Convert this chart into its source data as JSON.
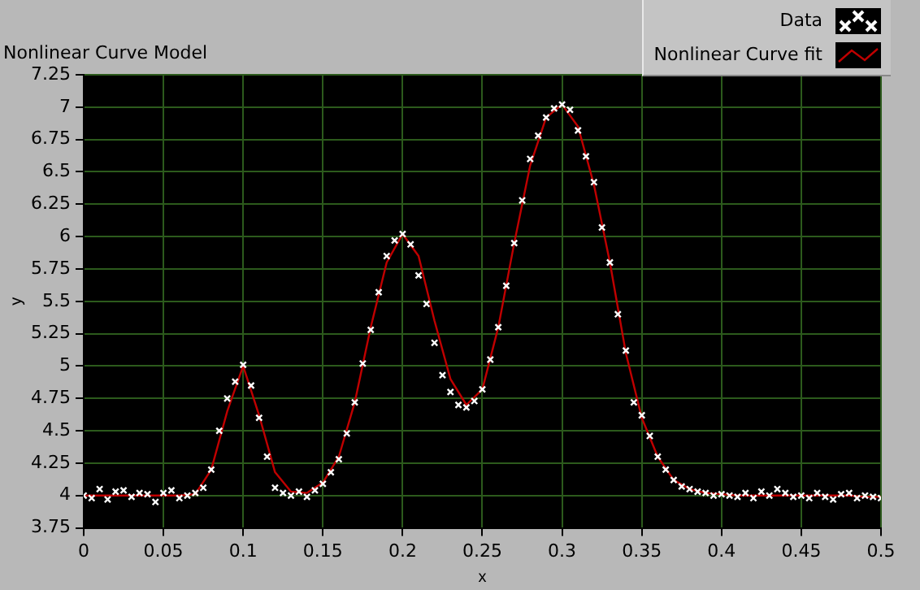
{
  "chart_data": {
    "type": "scatter",
    "title": "Nonlinear Curve Model",
    "xlabel": "x",
    "ylabel": "y",
    "xlim": [
      0,
      0.5
    ],
    "xticks": [
      0,
      0.05,
      0.1,
      0.15,
      0.2,
      0.25,
      0.3,
      0.35,
      0.4,
      0.45,
      0.5
    ],
    "ylim": [
      3.75,
      7.25
    ],
    "yticks": [
      3.75,
      4,
      4.25,
      4.5,
      4.75,
      5,
      5.25,
      5.5,
      5.75,
      6,
      6.25,
      6.5,
      6.75,
      7,
      7.25
    ],
    "grid": true,
    "legend": "top right",
    "marker": "cross",
    "series": [
      {
        "name": "Data",
        "color": "#ffffff",
        "x": [
          0,
          0.005,
          0.01,
          0.015,
          0.02,
          0.025,
          0.03,
          0.035,
          0.04,
          0.045,
          0.05,
          0.055,
          0.06,
          0.065,
          0.07,
          0.075,
          0.08,
          0.085,
          0.09,
          0.095,
          0.1,
          0.105,
          0.11,
          0.115,
          0.12,
          0.125,
          0.13,
          0.135,
          0.14,
          0.145,
          0.15,
          0.155,
          0.16,
          0.165,
          0.17,
          0.175,
          0.18,
          0.185,
          0.19,
          0.195,
          0.2,
          0.205,
          0.21,
          0.215,
          0.22,
          0.225,
          0.23,
          0.235,
          0.24,
          0.245,
          0.25,
          0.255,
          0.26,
          0.265,
          0.27,
          0.275,
          0.28,
          0.285,
          0.29,
          0.295,
          0.3,
          0.305,
          0.31,
          0.315,
          0.32,
          0.325,
          0.33,
          0.335,
          0.34,
          0.345,
          0.35,
          0.355,
          0.36,
          0.365,
          0.37,
          0.375,
          0.38,
          0.385,
          0.39,
          0.395,
          0.4,
          0.405,
          0.41,
          0.415,
          0.42,
          0.425,
          0.43,
          0.435,
          0.44,
          0.445,
          0.45,
          0.455,
          0.46,
          0.465,
          0.47,
          0.475,
          0.48,
          0.485,
          0.49,
          0.495,
          0.5
        ],
        "values": [
          4.0,
          3.98,
          4.05,
          3.97,
          4.03,
          4.04,
          3.99,
          4.02,
          4.01,
          3.95,
          4.02,
          4.04,
          3.98,
          4.0,
          4.02,
          4.06,
          4.2,
          4.5,
          4.75,
          4.88,
          5.01,
          4.85,
          4.6,
          4.3,
          4.06,
          4.02,
          4.0,
          4.03,
          3.99,
          4.04,
          4.09,
          4.18,
          4.28,
          4.48,
          4.72,
          5.02,
          5.28,
          5.57,
          5.85,
          5.97,
          6.02,
          5.94,
          5.7,
          5.48,
          5.18,
          4.93,
          4.8,
          4.7,
          4.68,
          4.73,
          4.82,
          5.05,
          5.3,
          5.62,
          5.95,
          6.28,
          6.6,
          6.78,
          6.92,
          6.99,
          7.02,
          6.98,
          6.82,
          6.62,
          6.42,
          6.07,
          5.8,
          5.4,
          5.12,
          4.72,
          4.62,
          4.46,
          4.3,
          4.2,
          4.12,
          4.07,
          4.05,
          4.03,
          4.02,
          4.0,
          4.01,
          4.0,
          3.99,
          4.02,
          3.98,
          4.03,
          4.0,
          4.05,
          4.02,
          3.99,
          4.0,
          3.98,
          4.02,
          3.99,
          3.97,
          4.01,
          4.02,
          3.98,
          4.0,
          3.99,
          3.98
        ]
      },
      {
        "name": "Nonlinear Curve fit",
        "type": "line",
        "color": "#c00000",
        "marker": "none",
        "line_style": "solid",
        "x": [
          0,
          0.01,
          0.02,
          0.03,
          0.04,
          0.05,
          0.06,
          0.07,
          0.08,
          0.09,
          0.1,
          0.11,
          0.12,
          0.13,
          0.14,
          0.15,
          0.16,
          0.17,
          0.18,
          0.19,
          0.2,
          0.21,
          0.22,
          0.23,
          0.24,
          0.25,
          0.26,
          0.27,
          0.28,
          0.29,
          0.3,
          0.31,
          0.32,
          0.33,
          0.34,
          0.35,
          0.36,
          0.37,
          0.38,
          0.39,
          0.4,
          0.41,
          0.42,
          0.43,
          0.44,
          0.45,
          0.46,
          0.47,
          0.48,
          0.49,
          0.5
        ],
        "values": [
          4.0,
          4.0,
          4.0,
          4.0,
          4.0,
          4.0,
          4.0,
          4.01,
          4.2,
          4.65,
          5.0,
          4.62,
          4.18,
          4.03,
          4.02,
          4.1,
          4.3,
          4.72,
          5.3,
          5.8,
          6.02,
          5.85,
          5.35,
          4.9,
          4.7,
          4.82,
          5.3,
          5.95,
          6.55,
          6.92,
          7.02,
          6.85,
          6.4,
          5.8,
          5.1,
          4.6,
          4.3,
          4.12,
          4.05,
          4.02,
          4.01,
          4.0,
          4.0,
          4.0,
          4.0,
          4.0,
          4.0,
          4.0,
          4.0,
          3.99,
          3.99
        ]
      }
    ]
  }
}
